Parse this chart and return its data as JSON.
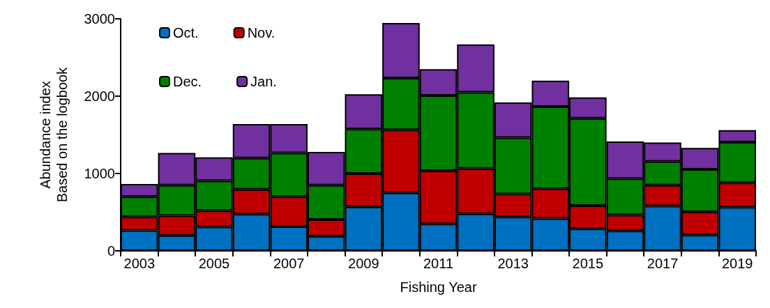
{
  "chart_data": {
    "type": "bar",
    "stacked": true,
    "xlabel": "Fishing Year",
    "ylabel": "Abundance index\nBased on the logbook",
    "categories": [
      "2003",
      null,
      "2005",
      null,
      "2007",
      null,
      "2009",
      null,
      "2011",
      null,
      "2013",
      null,
      "2015",
      null,
      "2017",
      null,
      "2019"
    ],
    "series": [
      {
        "name": "Oct.",
        "color": "#0070c0",
        "values": [
          265,
          200,
          310,
          475,
          315,
          190,
          570,
          750,
          350,
          480,
          440,
          420,
          285,
          260,
          580,
          205,
          565
        ]
      },
      {
        "name": "Nov.",
        "color": "#c00000",
        "values": [
          175,
          255,
          210,
          320,
          385,
          215,
          430,
          815,
          685,
          585,
          295,
          385,
          300,
          205,
          270,
          300,
          315
        ]
      },
      {
        "name": "Dec.",
        "color": "#008000",
        "values": [
          260,
          395,
          385,
          405,
          565,
          445,
          575,
          670,
          975,
          985,
          730,
          1060,
          1130,
          470,
          305,
          550,
          525
        ]
      },
      {
        "name": "Jan.",
        "color": "#7030a0",
        "values": [
          165,
          415,
          305,
          440,
          375,
          430,
          450,
          710,
          340,
          620,
          455,
          335,
          270,
          480,
          245,
          275,
          155
        ]
      }
    ],
    "ylim": [
      0,
      3000
    ],
    "yticks": [
      0,
      1000,
      2000,
      3000
    ],
    "grid": false,
    "legend": "top left"
  }
}
